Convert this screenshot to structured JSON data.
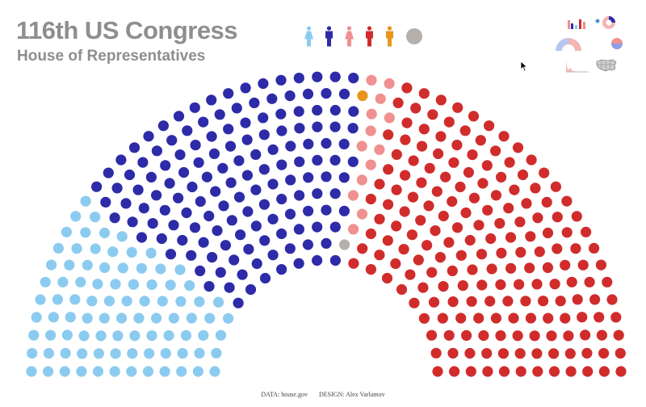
{
  "header": {
    "title": "116th US Congress",
    "subtitle": "House of Representatives"
  },
  "footer": {
    "data_credit": "DATA: house.gov",
    "design_credit": "DESIGN: Alex Varlamov"
  },
  "legend": {
    "items": [
      {
        "icon": "person-female-icon",
        "color": "#8ccbf0"
      },
      {
        "icon": "person-male-icon",
        "color": "#2e2ba8"
      },
      {
        "icon": "person-female-icon",
        "color": "#f09090"
      },
      {
        "icon": "person-male-icon",
        "color": "#d12c2c"
      },
      {
        "icon": "person-icon",
        "color": "#e8951c"
      },
      {
        "icon": "circle-icon",
        "color": "#b5b0ac"
      }
    ]
  },
  "view_buttons": [
    {
      "icon": "bar-chart-icon"
    },
    {
      "icon": "donut-chart-icon"
    },
    {
      "icon": "semicircle-chart-icon"
    },
    {
      "icon": "split-circle-icon"
    },
    {
      "icon": "histogram-icon"
    },
    {
      "icon": "us-map-icon"
    }
  ],
  "chart_data": {
    "type": "parliament",
    "rows": 12,
    "total_seats": 435,
    "segments": [
      {
        "seats": 89,
        "color": "#8ccbf0"
      },
      {
        "seats": 146,
        "color": "#2e2ba8"
      },
      {
        "seats": 1,
        "color": "#e8951c"
      },
      {
        "seats": 1,
        "color": "#b5b0ac"
      },
      {
        "seats": 13,
        "color": "#f09090"
      },
      {
        "seats": 185,
        "color": "#d12c2c"
      }
    ]
  }
}
